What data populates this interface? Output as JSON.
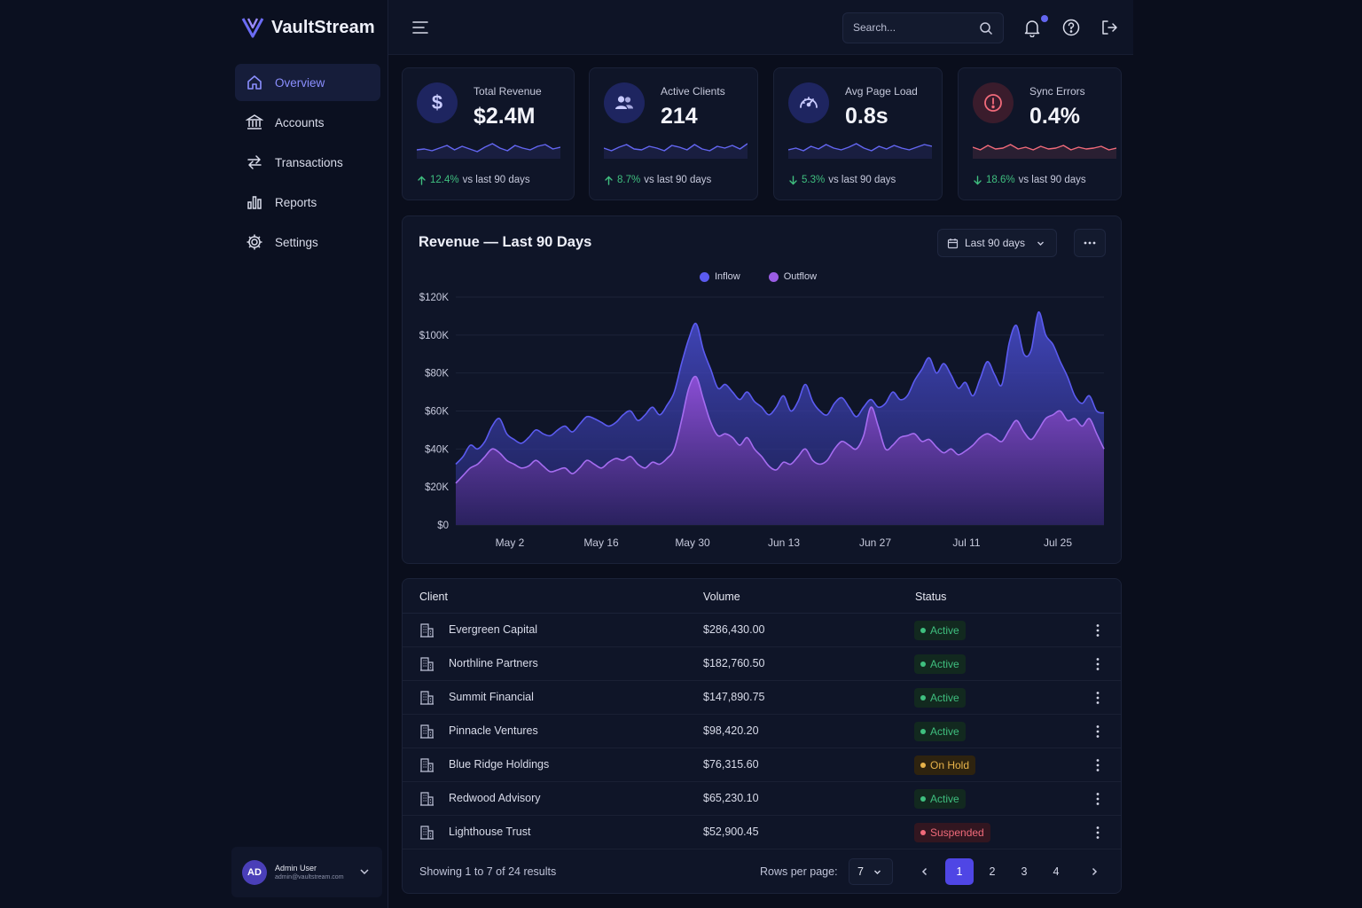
{
  "app": {
    "name": "VaultStream"
  },
  "sidebar": {
    "items": [
      {
        "label": "Overview",
        "icon": "home-icon",
        "active": true
      },
      {
        "label": "Accounts",
        "icon": "bank-icon",
        "active": false
      },
      {
        "label": "Transactions",
        "icon": "transfer-icon",
        "active": false
      },
      {
        "label": "Reports",
        "icon": "bar-chart-icon",
        "active": false
      },
      {
        "label": "Settings",
        "icon": "gear-icon",
        "active": false
      }
    ],
    "user": {
      "initials": "AD",
      "name": "Admin User",
      "email": "admin@vaultstream.com"
    }
  },
  "topbar": {
    "search_placeholder": "Search..."
  },
  "stats": [
    {
      "label": "Total Revenue",
      "value": "$2.4M",
      "change": "12.4%",
      "direction": "up",
      "suffix": "vs last 90 days",
      "icon": "dollar-icon",
      "color": "#6366f1"
    },
    {
      "label": "Active Clients",
      "value": "214",
      "change": "8.7%",
      "direction": "up",
      "suffix": "vs last 90 days",
      "icon": "users-icon",
      "color": "#6366f1"
    },
    {
      "label": "Avg Page Load",
      "value": "0.8s",
      "change": "5.3%",
      "direction": "down",
      "suffix": "vs last 90 days",
      "icon": "speedometer-icon",
      "color": "#6366f1"
    },
    {
      "label": "Sync Errors",
      "value": "0.4%",
      "change": "18.6%",
      "direction": "down",
      "suffix": "vs last 90 days",
      "icon": "alert-icon",
      "color": "#f06a7a"
    }
  ],
  "chart": {
    "title": "Revenue — Last 90 Days",
    "range_label": "Last 90 days"
  },
  "chart_data": {
    "type": "area",
    "title": "Revenue — Last 90 Days",
    "x_ticks": [
      "May 2",
      "May 16",
      "May 30",
      "Jun 13",
      "Jun 27",
      "Jul 11",
      "Jul 25"
    ],
    "y_ticks": [
      "$0",
      "$20K",
      "$40K",
      "$60K",
      "$80K",
      "$100K",
      "$120K"
    ],
    "ylim": [
      0,
      120000
    ],
    "legend_position": "top-center",
    "grid": true,
    "series": [
      {
        "name": "Inflow",
        "color": "#5b5bf0",
        "values": [
          32000,
          36000,
          42000,
          40000,
          44000,
          52000,
          56000,
          48000,
          45000,
          43000,
          46000,
          50000,
          48000,
          47000,
          50000,
          52000,
          49000,
          53000,
          57000,
          56000,
          54000,
          52000,
          54000,
          58000,
          60000,
          55000,
          58000,
          62000,
          58000,
          63000,
          70000,
          85000,
          98000,
          106000,
          92000,
          82000,
          72000,
          74000,
          70000,
          66000,
          70000,
          65000,
          62000,
          58000,
          62000,
          68000,
          60000,
          65000,
          74000,
          65000,
          60000,
          58000,
          64000,
          67000,
          62000,
          57000,
          62000,
          66000,
          62000,
          64000,
          70000,
          66000,
          68000,
          76000,
          82000,
          88000,
          80000,
          85000,
          79000,
          72000,
          75000,
          68000,
          77000,
          86000,
          79000,
          74000,
          96000,
          105000,
          90000,
          92000,
          112000,
          100000,
          95000,
          86000,
          78000,
          68000,
          64000,
          68000,
          60000,
          59000
        ]
      },
      {
        "name": "Outflow",
        "color": "#9b5de5",
        "values": [
          22000,
          26000,
          30000,
          32000,
          36000,
          40000,
          38000,
          34000,
          32000,
          30000,
          31000,
          34000,
          31000,
          28000,
          29000,
          30000,
          27000,
          30000,
          34000,
          32000,
          30000,
          33000,
          35000,
          34000,
          36000,
          32000,
          30000,
          33000,
          32000,
          35000,
          40000,
          55000,
          72000,
          78000,
          66000,
          54000,
          47000,
          48000,
          46000,
          42000,
          46000,
          40000,
          36000,
          31000,
          29000,
          33000,
          32000,
          36000,
          40000,
          34000,
          32000,
          34000,
          40000,
          44000,
          42000,
          40000,
          47000,
          62000,
          52000,
          40000,
          42000,
          46000,
          47000,
          48000,
          44000,
          45000,
          41000,
          38000,
          40000,
          37000,
          39000,
          42000,
          46000,
          48000,
          46000,
          44000,
          50000,
          55000,
          49000,
          45000,
          50000,
          56000,
          58000,
          60000,
          55000,
          56000,
          52000,
          56000,
          48000,
          40000
        ]
      }
    ]
  },
  "table": {
    "columns": [
      "Client",
      "Volume",
      "Status"
    ],
    "rows": [
      {
        "client": "Evergreen Capital",
        "volume": "$286,430.00",
        "status": "Active",
        "status_type": "active"
      },
      {
        "client": "Northline Partners",
        "volume": "$182,760.50",
        "status": "Active",
        "status_type": "active"
      },
      {
        "client": "Summit Financial",
        "volume": "$147,890.75",
        "status": "Active",
        "status_type": "active"
      },
      {
        "client": "Pinnacle Ventures",
        "volume": "$98,420.20",
        "status": "Active",
        "status_type": "active"
      },
      {
        "client": "Blue Ridge Holdings",
        "volume": "$76,315.60",
        "status": "On Hold",
        "status_type": "hold"
      },
      {
        "client": "Redwood Advisory",
        "volume": "$65,230.10",
        "status": "Active",
        "status_type": "active"
      },
      {
        "client": "Lighthouse Trust",
        "volume": "$52,900.45",
        "status": "Suspended",
        "status_type": "suspended"
      }
    ],
    "footer": {
      "showing": "Showing 1 to 7 of 24 results",
      "rows_per_page_label": "Rows per page:",
      "rows_per_page": "7",
      "pages": [
        "1",
        "2",
        "3",
        "4"
      ],
      "current_page": "1"
    }
  }
}
